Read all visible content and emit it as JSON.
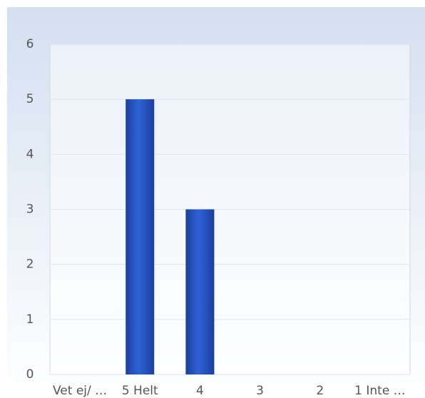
{
  "chart_data": {
    "type": "bar",
    "categories": [
      "Vet ej/ …",
      "5 Helt",
      "4",
      "3",
      "2",
      "1 Inte …"
    ],
    "values": [
      0,
      5,
      3,
      0,
      0,
      0
    ],
    "color": "#2f63d6",
    "ylim": [
      0,
      6
    ],
    "yticks": [
      0,
      1,
      2,
      3,
      4,
      5,
      6
    ],
    "grid": true
  }
}
